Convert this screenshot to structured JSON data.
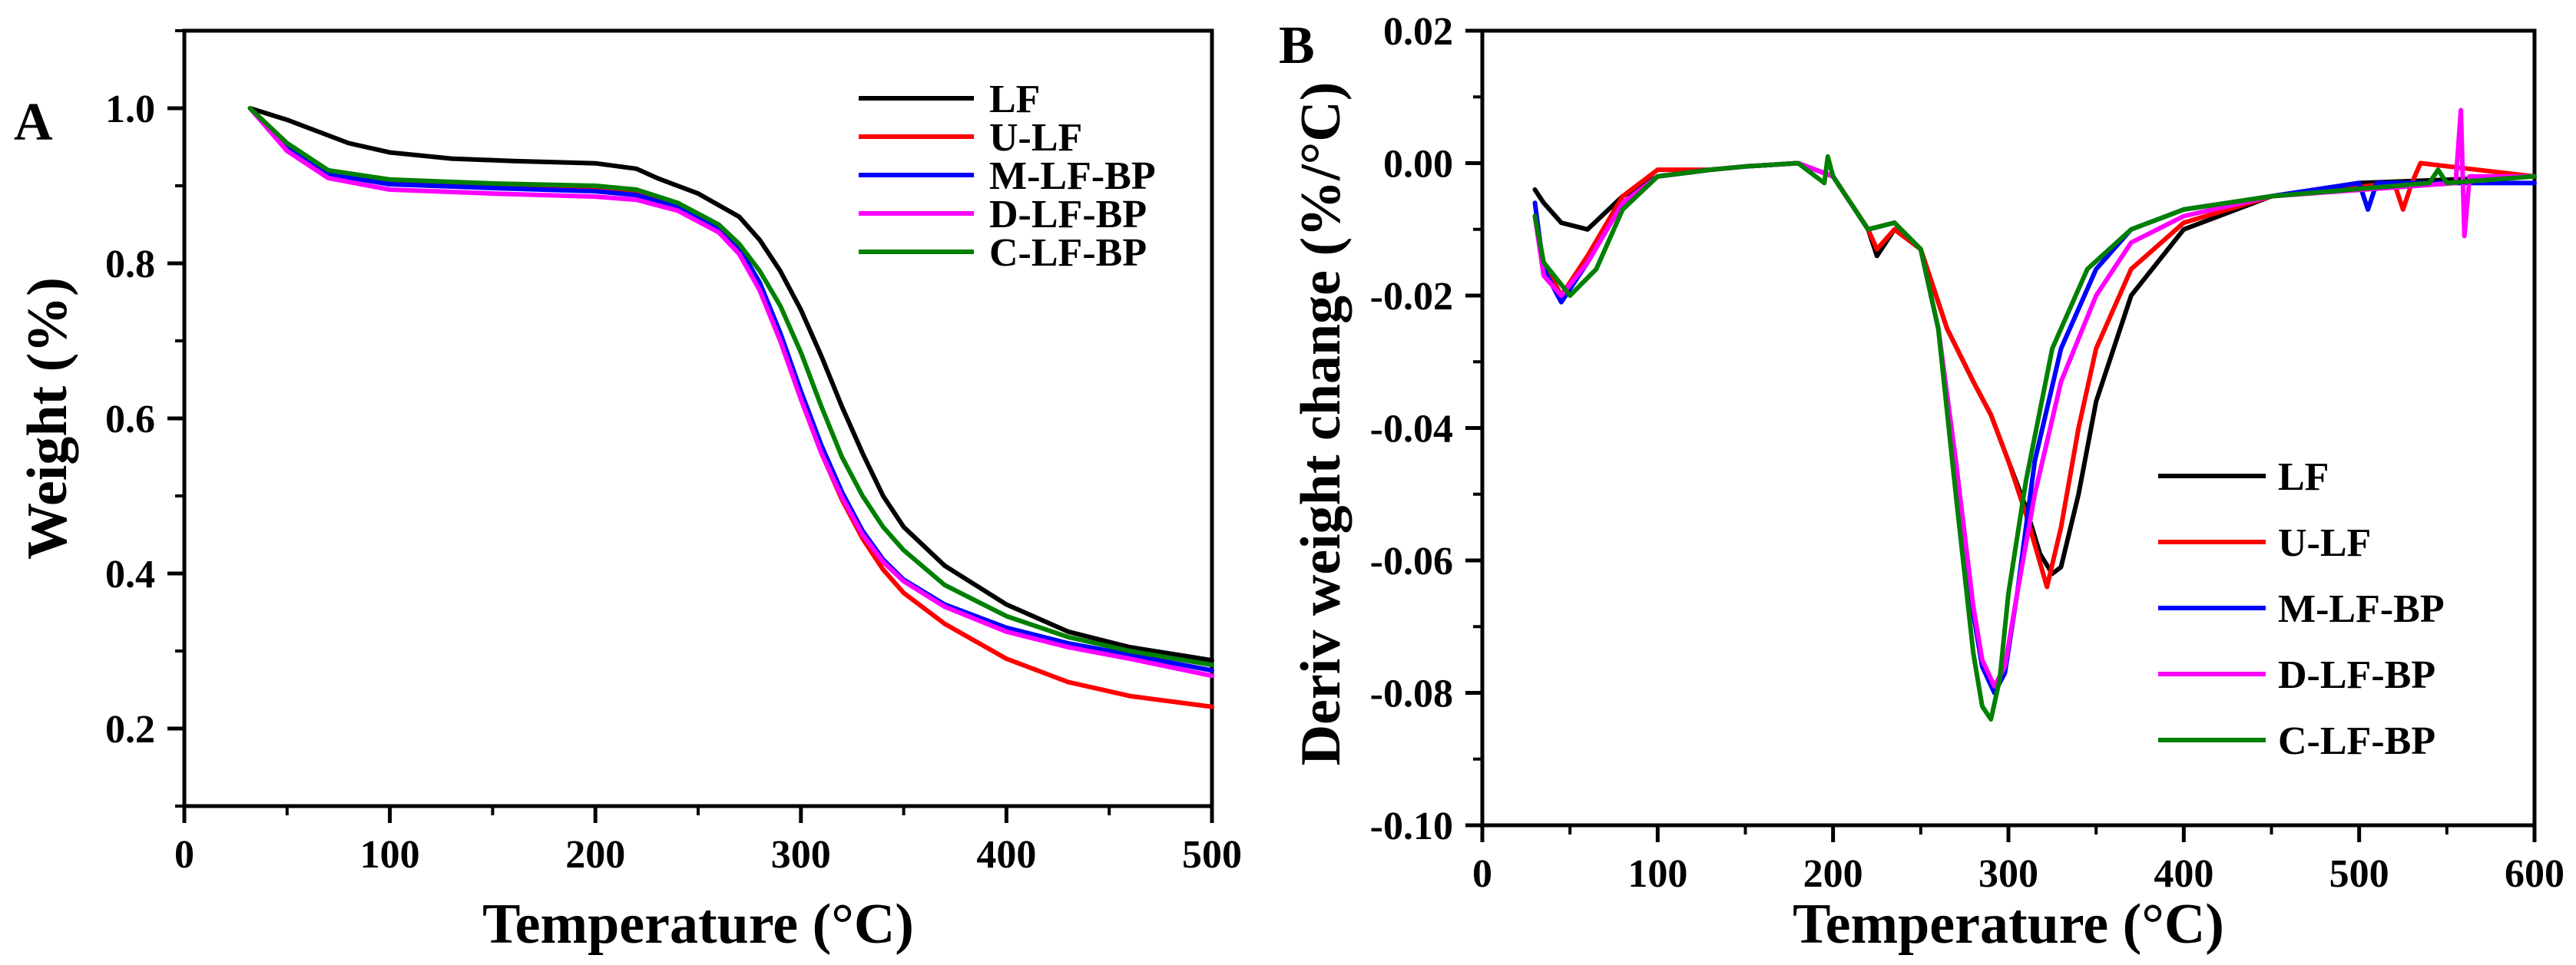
{
  "chart_data": [
    {
      "panel_label": "A",
      "type": "line",
      "xlabel": "Temperature (°C)",
      "ylabel": "Weight (%)",
      "xlim": [
        0,
        500
      ],
      "ylim": [
        0.1,
        1.1
      ],
      "xticks": [
        0,
        100,
        200,
        300,
        400,
        500
      ],
      "xtick_labels": [
        "0",
        "100",
        "200",
        "300",
        "400",
        "500"
      ],
      "yticks": [
        0.2,
        0.4,
        0.6,
        0.8,
        1.0
      ],
      "ytick_labels": [
        "0.2",
        "0.4",
        "0.6",
        "0.8",
        "1.0"
      ],
      "legend_position": "top-right",
      "series": [
        {
          "name": "LF",
          "color": "#000000",
          "x": [
            32,
            50,
            80,
            100,
            130,
            160,
            200,
            220,
            230,
            250,
            270,
            280,
            290,
            300,
            310,
            320,
            330,
            340,
            350,
            370,
            400,
            430,
            460,
            500
          ],
          "y": [
            1.0,
            0.985,
            0.955,
            0.943,
            0.935,
            0.932,
            0.929,
            0.922,
            0.91,
            0.89,
            0.86,
            0.83,
            0.79,
            0.74,
            0.68,
            0.615,
            0.555,
            0.5,
            0.46,
            0.41,
            0.36,
            0.325,
            0.305,
            0.288
          ]
        },
        {
          "name": "U-LF",
          "color": "#ff0000",
          "x": [
            32,
            50,
            70,
            100,
            150,
            200,
            220,
            240,
            260,
            270,
            280,
            290,
            300,
            310,
            320,
            330,
            340,
            350,
            370,
            400,
            430,
            460,
            500
          ],
          "y": [
            1.0,
            0.955,
            0.918,
            0.905,
            0.9,
            0.897,
            0.893,
            0.875,
            0.845,
            0.815,
            0.765,
            0.7,
            0.625,
            0.555,
            0.495,
            0.445,
            0.405,
            0.375,
            0.335,
            0.29,
            0.26,
            0.242,
            0.228
          ]
        },
        {
          "name": "M-LF-BP",
          "color": "#0000ff",
          "x": [
            32,
            50,
            70,
            100,
            150,
            200,
            220,
            240,
            260,
            270,
            280,
            290,
            300,
            310,
            320,
            330,
            340,
            350,
            370,
            400,
            430,
            460,
            500
          ],
          "y": [
            1.0,
            0.95,
            0.915,
            0.902,
            0.897,
            0.893,
            0.888,
            0.872,
            0.845,
            0.82,
            0.775,
            0.71,
            0.635,
            0.565,
            0.505,
            0.455,
            0.418,
            0.392,
            0.36,
            0.33,
            0.31,
            0.295,
            0.275
          ]
        },
        {
          "name": "D-LF-BP",
          "color": "#ff00ff",
          "x": [
            32,
            50,
            70,
            100,
            150,
            200,
            220,
            240,
            260,
            270,
            280,
            290,
            300,
            310,
            320,
            330,
            340,
            350,
            370,
            400,
            430,
            460,
            500
          ],
          "y": [
            1.0,
            0.945,
            0.91,
            0.895,
            0.89,
            0.886,
            0.882,
            0.868,
            0.84,
            0.812,
            0.765,
            0.7,
            0.625,
            0.555,
            0.498,
            0.45,
            0.415,
            0.39,
            0.357,
            0.325,
            0.305,
            0.29,
            0.268
          ]
        },
        {
          "name": "C-LF-BP",
          "color": "#008000",
          "x": [
            32,
            50,
            70,
            100,
            150,
            200,
            220,
            240,
            260,
            270,
            280,
            290,
            300,
            310,
            320,
            330,
            340,
            350,
            370,
            400,
            430,
            460,
            500
          ],
          "y": [
            1.0,
            0.955,
            0.92,
            0.908,
            0.903,
            0.9,
            0.895,
            0.878,
            0.85,
            0.825,
            0.79,
            0.745,
            0.685,
            0.615,
            0.55,
            0.5,
            0.46,
            0.43,
            0.385,
            0.345,
            0.318,
            0.3,
            0.282
          ]
        }
      ]
    },
    {
      "panel_label": "B",
      "type": "line",
      "xlabel": "Temperature (°C)",
      "ylabel": "Deriv weight change (%/°C)",
      "xlim": [
        0,
        600
      ],
      "ylim": [
        -0.1,
        0.02
      ],
      "xticks": [
        0,
        100,
        200,
        300,
        400,
        500,
        600
      ],
      "xtick_labels": [
        "0",
        "100",
        "200",
        "300",
        "400",
        "500",
        "600"
      ],
      "yticks": [
        -0.1,
        -0.08,
        -0.06,
        -0.04,
        -0.02,
        0.0,
        0.02
      ],
      "ytick_labels": [
        "-0.10",
        "-0.08",
        "-0.06",
        "-0.04",
        "-0.02",
        "0.00",
        "0.02"
      ],
      "legend_position": "bottom-right",
      "series": [
        {
          "name": "LF",
          "color": "#000000",
          "x": [
            30,
            35,
            45,
            60,
            80,
            100,
            130,
            150,
            180,
            200,
            220,
            225,
            235,
            250,
            265,
            280,
            290,
            300,
            310,
            318,
            325,
            330,
            340,
            350,
            370,
            400,
            450,
            500,
            600
          ],
          "y": [
            -0.004,
            -0.006,
            -0.009,
            -0.01,
            -0.005,
            -0.002,
            -0.001,
            -0.0005,
            0.0,
            -0.002,
            -0.01,
            -0.014,
            -0.01,
            -0.013,
            -0.025,
            -0.033,
            -0.038,
            -0.045,
            -0.052,
            -0.059,
            -0.062,
            -0.061,
            -0.05,
            -0.036,
            -0.02,
            -0.01,
            -0.005,
            -0.003,
            -0.002
          ]
        },
        {
          "name": "U-LF",
          "color": "#ff0000",
          "x": [
            30,
            35,
            45,
            60,
            80,
            100,
            130,
            150,
            180,
            200,
            220,
            225,
            235,
            250,
            265,
            280,
            290,
            300,
            310,
            322,
            330,
            340,
            350,
            370,
            400,
            450,
            520,
            525,
            530,
            535,
            600
          ],
          "y": [
            -0.008,
            -0.015,
            -0.02,
            -0.014,
            -0.005,
            -0.001,
            -0.001,
            -0.0005,
            0.0,
            -0.002,
            -0.01,
            -0.013,
            -0.01,
            -0.013,
            -0.025,
            -0.033,
            -0.038,
            -0.045,
            -0.053,
            -0.064,
            -0.055,
            -0.04,
            -0.028,
            -0.016,
            -0.009,
            -0.005,
            -0.003,
            -0.007,
            -0.003,
            0.0,
            -0.002
          ]
        },
        {
          "name": "M-LF-BP",
          "color": "#0000ff",
          "x": [
            30,
            35,
            45,
            60,
            80,
            100,
            130,
            150,
            180,
            200,
            220,
            235,
            250,
            260,
            270,
            280,
            285,
            292,
            298,
            305,
            315,
            330,
            350,
            370,
            400,
            450,
            500,
            505,
            510,
            600
          ],
          "y": [
            -0.006,
            -0.016,
            -0.021,
            -0.015,
            -0.006,
            -0.002,
            -0.001,
            -0.0005,
            0.0,
            -0.002,
            -0.01,
            -0.009,
            -0.013,
            -0.025,
            -0.045,
            -0.068,
            -0.076,
            -0.08,
            -0.077,
            -0.065,
            -0.045,
            -0.028,
            -0.016,
            -0.01,
            -0.007,
            -0.005,
            -0.003,
            -0.007,
            -0.003,
            -0.003
          ]
        },
        {
          "name": "D-LF-BP",
          "color": "#ff00ff",
          "x": [
            30,
            35,
            45,
            60,
            80,
            100,
            130,
            150,
            180,
            200,
            220,
            235,
            250,
            260,
            270,
            280,
            285,
            292,
            298,
            305,
            315,
            330,
            350,
            370,
            400,
            450,
            555,
            558,
            560,
            563,
            600
          ],
          "y": [
            -0.008,
            -0.017,
            -0.02,
            -0.015,
            -0.006,
            -0.002,
            -0.001,
            -0.0005,
            0.0,
            -0.002,
            -0.01,
            -0.009,
            -0.013,
            -0.025,
            -0.045,
            -0.067,
            -0.075,
            -0.079,
            -0.076,
            -0.065,
            -0.05,
            -0.033,
            -0.02,
            -0.012,
            -0.008,
            -0.005,
            -0.003,
            0.008,
            -0.011,
            -0.002,
            -0.002
          ]
        },
        {
          "name": "C-LF-BP",
          "color": "#008000",
          "x": [
            30,
            35,
            50,
            65,
            80,
            100,
            130,
            150,
            180,
            195,
            197,
            200,
            220,
            235,
            250,
            260,
            270,
            280,
            285,
            290,
            295,
            300,
            310,
            325,
            345,
            370,
            400,
            450,
            540,
            545,
            550,
            600
          ],
          "y": [
            -0.008,
            -0.015,
            -0.02,
            -0.016,
            -0.007,
            -0.002,
            -0.001,
            -0.0005,
            0.0,
            -0.003,
            0.001,
            -0.002,
            -0.01,
            -0.009,
            -0.013,
            -0.025,
            -0.05,
            -0.074,
            -0.082,
            -0.084,
            -0.078,
            -0.065,
            -0.048,
            -0.028,
            -0.016,
            -0.01,
            -0.007,
            -0.005,
            -0.003,
            -0.001,
            -0.003,
            -0.002
          ]
        }
      ]
    }
  ]
}
